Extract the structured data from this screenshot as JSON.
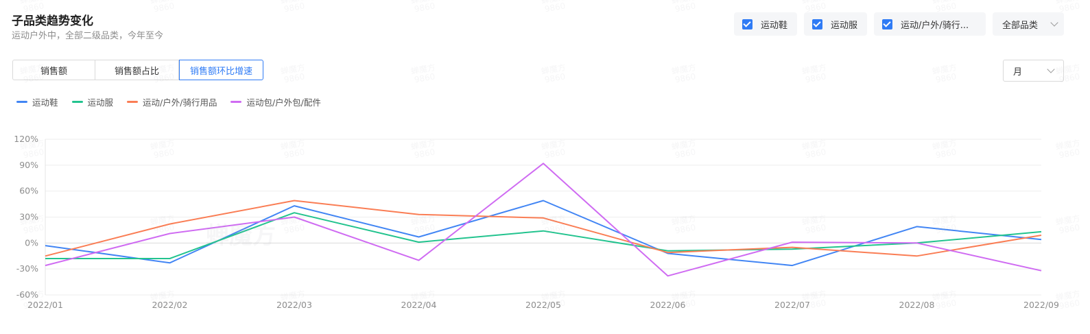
{
  "header": {
    "title": "子品类趋势变化",
    "subtitle": "运动户外中，全部二级品类，今年至今"
  },
  "filters": {
    "chips": [
      {
        "label": "运动鞋",
        "checked": true
      },
      {
        "label": "运动服",
        "checked": true
      },
      {
        "label": "运动/户外/骑行...",
        "checked": true
      }
    ],
    "category_select": "全部品类"
  },
  "tabs": [
    {
      "label": "销售额",
      "active": false
    },
    {
      "label": "销售额占比",
      "active": false
    },
    {
      "label": "销售额环比增速",
      "active": true
    }
  ],
  "period_select": "月",
  "watermark": {
    "line1": "蝉魔方",
    "line2": "9860",
    "logo_text": "蝉魔方"
  },
  "colors": {
    "accent": "#2f7bf5"
  },
  "chart_data": {
    "type": "line",
    "title": "",
    "xlabel": "",
    "ylabel": "",
    "x": [
      "2022/01",
      "2022/02",
      "2022/03",
      "2022/04",
      "2022/05",
      "2022/06",
      "2022/07",
      "2022/08",
      "2022/09"
    ],
    "ylim": [
      -60,
      120
    ],
    "yticks": [
      -60,
      -30,
      0,
      30,
      60,
      90,
      120
    ],
    "ytick_labels": [
      "-60%",
      "-30%",
      "0%",
      "30%",
      "60%",
      "90%",
      "120%"
    ],
    "y_unit": "%",
    "grid": true,
    "legend": "top-left",
    "series": [
      {
        "name": "运动鞋",
        "color": "#4185f4",
        "values": [
          -3,
          -23,
          43,
          7,
          49,
          -12,
          -26,
          19,
          4
        ]
      },
      {
        "name": "运动服",
        "color": "#22c38e",
        "values": [
          -18,
          -18,
          35,
          1,
          14,
          -9,
          -7,
          0,
          13
        ]
      },
      {
        "name": "运动/户外/骑行用品",
        "color": "#fa7d54",
        "values": [
          -15,
          22,
          49,
          33,
          29,
          -11,
          -5,
          -15,
          9
        ]
      },
      {
        "name": "运动包/户外包/配件",
        "color": "#cf6bf2",
        "values": [
          -26,
          11,
          30,
          -20,
          92,
          -38,
          1,
          0,
          -32
        ]
      }
    ]
  }
}
